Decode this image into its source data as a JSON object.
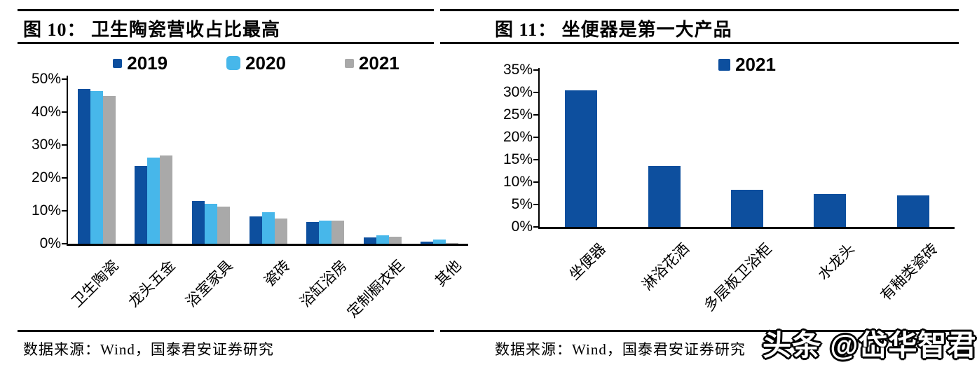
{
  "panels": [
    {
      "title": "图 10： 卫生陶瓷营收占比最高",
      "source": "数据来源：Wind，国泰君安证券研究"
    },
    {
      "title": "图 11： 坐便器是第一大产品",
      "source": "数据来源：Wind，国泰君安证券研究"
    }
  ],
  "watermark": "头条 @岱华智君",
  "colors": {
    "bar_dark_blue": "#0D4F9E",
    "bar_light_blue": "#47B7EA",
    "bar_gray": "#A9A9A9",
    "axis": "#000000",
    "rule": "#000000"
  },
  "chart_data": [
    {
      "type": "bar",
      "title": "图 10： 卫生陶瓷营收占比最高",
      "categories": [
        "卫生陶瓷",
        "龙头五金",
        "浴室家具",
        "瓷砖",
        "浴缸浴房",
        "定制橱衣柜",
        "其他"
      ],
      "series": [
        {
          "name": "2019",
          "color": "#0D4F9E",
          "values": [
            47.0,
            23.7,
            12.9,
            8.3,
            6.6,
            1.9,
            0.7
          ]
        },
        {
          "name": "2020",
          "color": "#47B7EA",
          "values": [
            46.4,
            26.1,
            12.1,
            9.5,
            7.0,
            2.6,
            1.3
          ]
        },
        {
          "name": "2021",
          "color": "#A9A9A9",
          "values": [
            44.8,
            26.9,
            11.3,
            7.7,
            7.1,
            2.2,
            0.3
          ]
        }
      ],
      "xlabel": "",
      "ylabel": "",
      "ylim": [
        0,
        50
      ],
      "ytick_step": 10,
      "ytick_format": "percent",
      "legend_position": "top",
      "grid": false
    },
    {
      "type": "bar",
      "title": "图 11： 坐便器是第一大产品",
      "categories": [
        "坐便器",
        "淋浴花洒",
        "多层板卫浴柜",
        "水龙头",
        "有釉类瓷砖"
      ],
      "series": [
        {
          "name": "2021",
          "color": "#0D4F9E",
          "values": [
            30.4,
            13.6,
            8.3,
            7.3,
            7.0
          ]
        }
      ],
      "xlabel": "",
      "ylabel": "",
      "ylim": [
        0,
        35
      ],
      "ytick_step": 5,
      "ytick_format": "percent",
      "legend_position": "top",
      "grid": false
    }
  ]
}
